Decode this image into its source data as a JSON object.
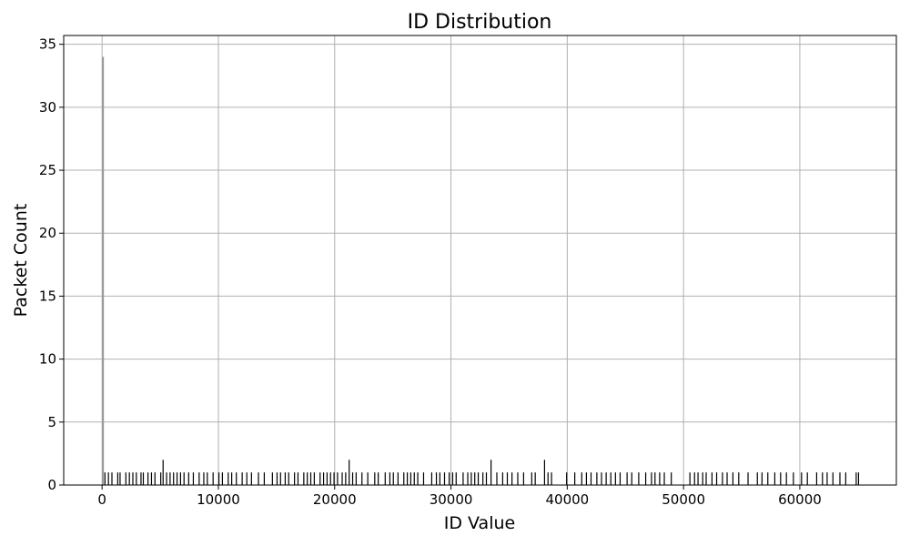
{
  "chart_data": {
    "type": "bar",
    "title": "ID Distribution",
    "xlabel": "ID Value",
    "ylabel": "Packet Count",
    "xlim": [
      -3300,
      68300
    ],
    "ylim": [
      0,
      35.7
    ],
    "xticks": [
      0,
      10000,
      20000,
      30000,
      40000,
      50000,
      60000
    ],
    "xtick_labels": [
      "0",
      "10000",
      "20000",
      "30000",
      "40000",
      "50000",
      "60000"
    ],
    "yticks": [
      0,
      5,
      10,
      15,
      20,
      25,
      30,
      35
    ],
    "ytick_labels": [
      "0",
      "5",
      "10",
      "15",
      "20",
      "25",
      "30",
      "35"
    ],
    "grid": true,
    "colors": {
      "bar_edge": "#000000",
      "grid": "#b0b0b0",
      "axes": "#000000",
      "peak_bar": "#999999"
    },
    "series": [
      {
        "values": [
          {
            "x": 0,
            "y": 34
          },
          {
            "x": 5200,
            "y": 2
          },
          {
            "x": 21200,
            "y": 2
          },
          {
            "x": 33400,
            "y": 2
          },
          {
            "x": 38000,
            "y": 2
          },
          {
            "x": 200,
            "y": 1
          },
          {
            "x": 500,
            "y": 1
          },
          {
            "x": 800,
            "y": 1
          },
          {
            "x": 1300,
            "y": 1
          },
          {
            "x": 1500,
            "y": 1
          },
          {
            "x": 2000,
            "y": 1
          },
          {
            "x": 2300,
            "y": 1
          },
          {
            "x": 2600,
            "y": 1
          },
          {
            "x": 2900,
            "y": 1
          },
          {
            "x": 3300,
            "y": 1
          },
          {
            "x": 3500,
            "y": 1
          },
          {
            "x": 3900,
            "y": 1
          },
          {
            "x": 4200,
            "y": 1
          },
          {
            "x": 4500,
            "y": 1
          },
          {
            "x": 5000,
            "y": 1
          },
          {
            "x": 5500,
            "y": 1
          },
          {
            "x": 5800,
            "y": 1
          },
          {
            "x": 6100,
            "y": 1
          },
          {
            "x": 6400,
            "y": 1
          },
          {
            "x": 6700,
            "y": 1
          },
          {
            "x": 7000,
            "y": 1
          },
          {
            "x": 7400,
            "y": 1
          },
          {
            "x": 7800,
            "y": 1
          },
          {
            "x": 8300,
            "y": 1
          },
          {
            "x": 8700,
            "y": 1
          },
          {
            "x": 9000,
            "y": 1
          },
          {
            "x": 9500,
            "y": 1
          },
          {
            "x": 10000,
            "y": 1
          },
          {
            "x": 10300,
            "y": 1
          },
          {
            "x": 10800,
            "y": 1
          },
          {
            "x": 11100,
            "y": 1
          },
          {
            "x": 11500,
            "y": 1
          },
          {
            "x": 12000,
            "y": 1
          },
          {
            "x": 12400,
            "y": 1
          },
          {
            "x": 12800,
            "y": 1
          },
          {
            "x": 13400,
            "y": 1
          },
          {
            "x": 13900,
            "y": 1
          },
          {
            "x": 14600,
            "y": 1
          },
          {
            "x": 15000,
            "y": 1
          },
          {
            "x": 15300,
            "y": 1
          },
          {
            "x": 15700,
            "y": 1
          },
          {
            "x": 16000,
            "y": 1
          },
          {
            "x": 16500,
            "y": 1
          },
          {
            "x": 16800,
            "y": 1
          },
          {
            "x": 17300,
            "y": 1
          },
          {
            "x": 17600,
            "y": 1
          },
          {
            "x": 17900,
            "y": 1
          },
          {
            "x": 18200,
            "y": 1
          },
          {
            "x": 18700,
            "y": 1
          },
          {
            "x": 19000,
            "y": 1
          },
          {
            "x": 19300,
            "y": 1
          },
          {
            "x": 19600,
            "y": 1
          },
          {
            "x": 19900,
            "y": 1
          },
          {
            "x": 20200,
            "y": 1
          },
          {
            "x": 20600,
            "y": 1
          },
          {
            "x": 20900,
            "y": 1
          },
          {
            "x": 21500,
            "y": 1
          },
          {
            "x": 21800,
            "y": 1
          },
          {
            "x": 22300,
            "y": 1
          },
          {
            "x": 22800,
            "y": 1
          },
          {
            "x": 23400,
            "y": 1
          },
          {
            "x": 23700,
            "y": 1
          },
          {
            "x": 24300,
            "y": 1
          },
          {
            "x": 24700,
            "y": 1
          },
          {
            "x": 25000,
            "y": 1
          },
          {
            "x": 25400,
            "y": 1
          },
          {
            "x": 25900,
            "y": 1
          },
          {
            "x": 26200,
            "y": 1
          },
          {
            "x": 26500,
            "y": 1
          },
          {
            "x": 26800,
            "y": 1
          },
          {
            "x": 27100,
            "y": 1
          },
          {
            "x": 27600,
            "y": 1
          },
          {
            "x": 28300,
            "y": 1
          },
          {
            "x": 28700,
            "y": 1
          },
          {
            "x": 29000,
            "y": 1
          },
          {
            "x": 29400,
            "y": 1
          },
          {
            "x": 29800,
            "y": 1
          },
          {
            "x": 30100,
            "y": 1
          },
          {
            "x": 30400,
            "y": 1
          },
          {
            "x": 31000,
            "y": 1
          },
          {
            "x": 31400,
            "y": 1
          },
          {
            "x": 31700,
            "y": 1
          },
          {
            "x": 32000,
            "y": 1
          },
          {
            "x": 32300,
            "y": 1
          },
          {
            "x": 32700,
            "y": 1
          },
          {
            "x": 33000,
            "y": 1
          },
          {
            "x": 33900,
            "y": 1
          },
          {
            "x": 34400,
            "y": 1
          },
          {
            "x": 34800,
            "y": 1
          },
          {
            "x": 35200,
            "y": 1
          },
          {
            "x": 35700,
            "y": 1
          },
          {
            "x": 36200,
            "y": 1
          },
          {
            "x": 36900,
            "y": 1
          },
          {
            "x": 37200,
            "y": 1
          },
          {
            "x": 38300,
            "y": 1
          },
          {
            "x": 38600,
            "y": 1
          },
          {
            "x": 39900,
            "y": 1
          },
          {
            "x": 40600,
            "y": 1
          },
          {
            "x": 41200,
            "y": 1
          },
          {
            "x": 41600,
            "y": 1
          },
          {
            "x": 42000,
            "y": 1
          },
          {
            "x": 42500,
            "y": 1
          },
          {
            "x": 42900,
            "y": 1
          },
          {
            "x": 43300,
            "y": 1
          },
          {
            "x": 43700,
            "y": 1
          },
          {
            "x": 44100,
            "y": 1
          },
          {
            "x": 44500,
            "y": 1
          },
          {
            "x": 45100,
            "y": 1
          },
          {
            "x": 45500,
            "y": 1
          },
          {
            "x": 46100,
            "y": 1
          },
          {
            "x": 46700,
            "y": 1
          },
          {
            "x": 47200,
            "y": 1
          },
          {
            "x": 47500,
            "y": 1
          },
          {
            "x": 47900,
            "y": 1
          },
          {
            "x": 48300,
            "y": 1
          },
          {
            "x": 48900,
            "y": 1
          },
          {
            "x": 50500,
            "y": 1
          },
          {
            "x": 50900,
            "y": 1
          },
          {
            "x": 51200,
            "y": 1
          },
          {
            "x": 51600,
            "y": 1
          },
          {
            "x": 51900,
            "y": 1
          },
          {
            "x": 52400,
            "y": 1
          },
          {
            "x": 52800,
            "y": 1
          },
          {
            "x": 53300,
            "y": 1
          },
          {
            "x": 53700,
            "y": 1
          },
          {
            "x": 54200,
            "y": 1
          },
          {
            "x": 54700,
            "y": 1
          },
          {
            "x": 55500,
            "y": 1
          },
          {
            "x": 56300,
            "y": 1
          },
          {
            "x": 56700,
            "y": 1
          },
          {
            "x": 57200,
            "y": 1
          },
          {
            "x": 57800,
            "y": 1
          },
          {
            "x": 58300,
            "y": 1
          },
          {
            "x": 58800,
            "y": 1
          },
          {
            "x": 59400,
            "y": 1
          },
          {
            "x": 60100,
            "y": 1
          },
          {
            "x": 60600,
            "y": 1
          },
          {
            "x": 61400,
            "y": 1
          },
          {
            "x": 61900,
            "y": 1
          },
          {
            "x": 62300,
            "y": 1
          },
          {
            "x": 62800,
            "y": 1
          },
          {
            "x": 63400,
            "y": 1
          },
          {
            "x": 63900,
            "y": 1
          },
          {
            "x": 64800,
            "y": 1
          },
          {
            "x": 65000,
            "y": 1
          }
        ]
      }
    ]
  }
}
